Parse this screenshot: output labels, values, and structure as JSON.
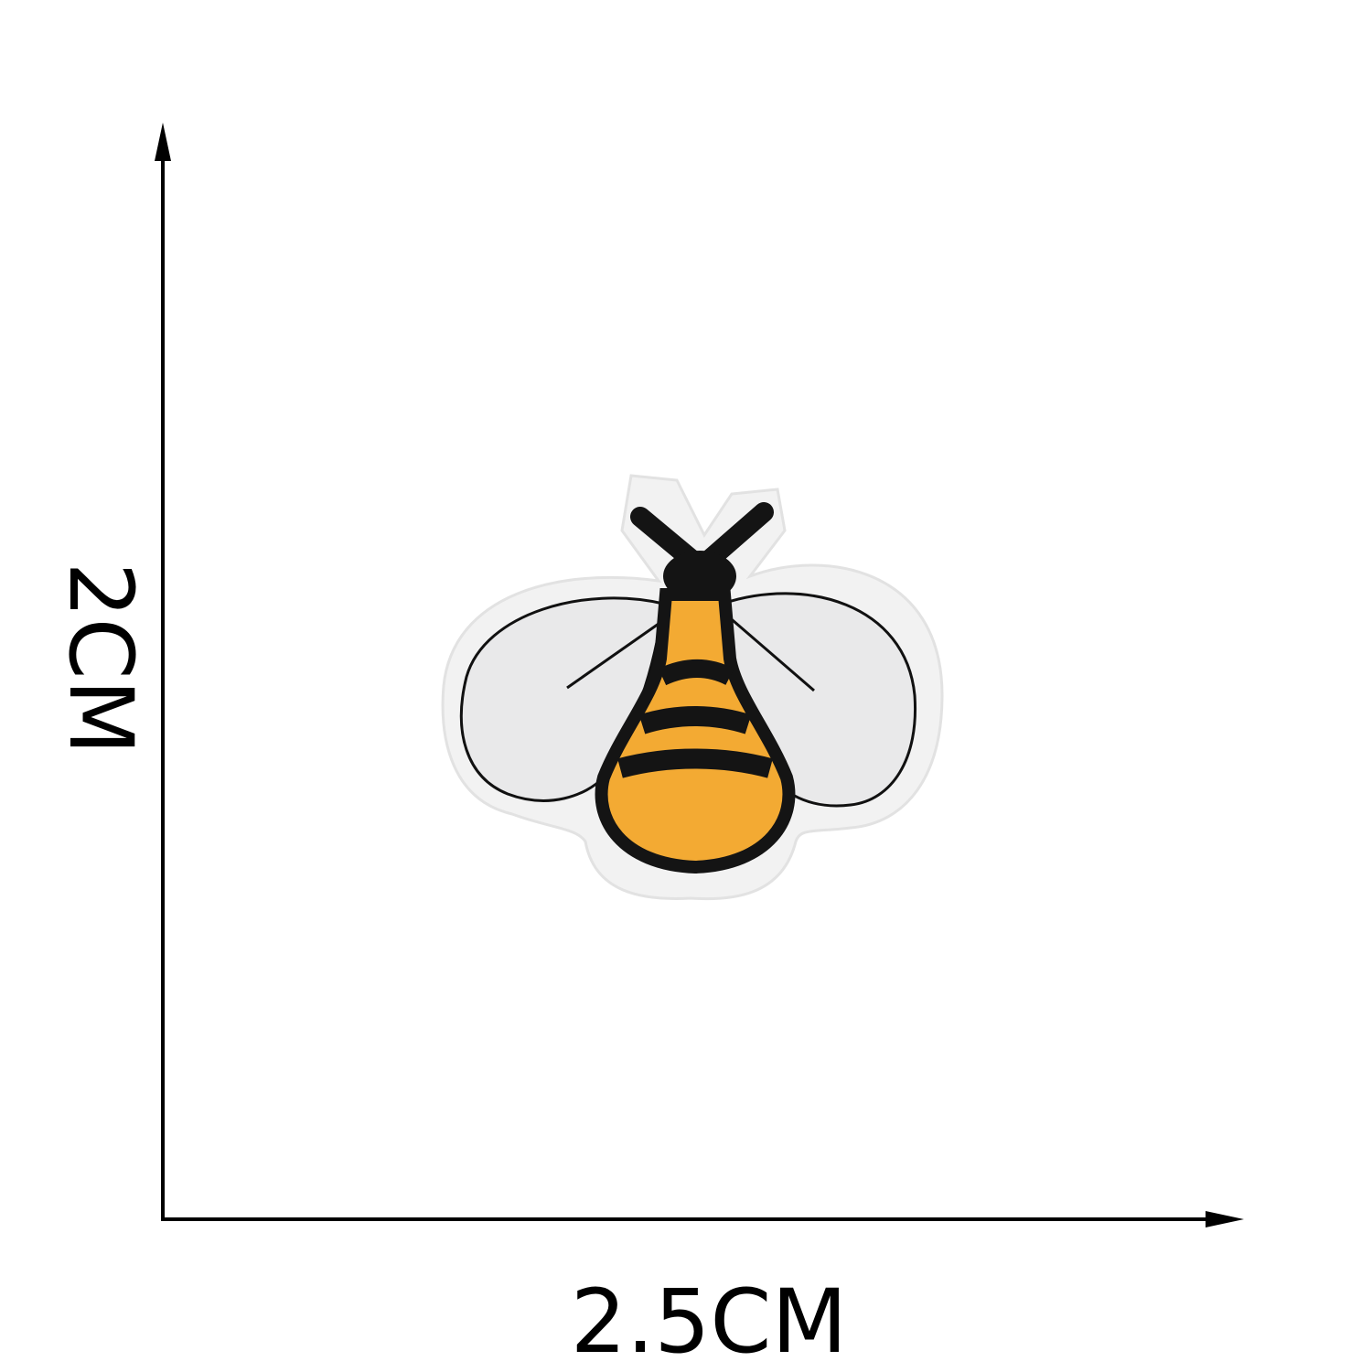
{
  "dimensions": {
    "width_label": "2.5CM",
    "height_label": "2CM"
  },
  "colors": {
    "line": "#000000",
    "felt": "#f2f2f2",
    "wing": "#e9e9ea",
    "body_yellow": "#f3aa33",
    "stripe": "#141414"
  },
  "patch": {
    "subject": "bee-embroidered-patch"
  }
}
